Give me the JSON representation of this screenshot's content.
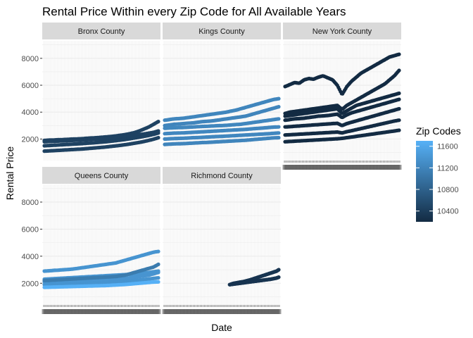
{
  "chart_data": {
    "type": "scatter",
    "title": "Rental Price Within every Zip Code for All Available Years",
    "xlabel": "Date",
    "ylabel": "Rental Price",
    "ylim": [
      400,
      9300
    ],
    "y_ticks": [
      2000,
      4000,
      6000,
      8000
    ],
    "grid": true,
    "facets": [
      "Bronx County",
      "Kings County",
      "New York County",
      "Queens County",
      "Richmond County"
    ],
    "legend": {
      "title": "Zip Codes",
      "placement": "right",
      "ticks": [
        10400,
        10800,
        11200,
        11600
      ],
      "range": [
        10200,
        11700
      ],
      "colors": {
        "low": "#132B43",
        "high": "#56B1F7"
      }
    },
    "panels": [
      {
        "facet": "Bronx County",
        "series": [
          {
            "zip": 10460,
            "values": [
              1900,
              1920,
              1930,
              1950,
              1960,
              1980,
              2000,
              2010,
              2030,
              2060,
              2080,
              2100,
              2130,
              2160,
              2190,
              2230,
              2280,
              2330,
              2400,
              2480,
              2600,
              2750,
              2900,
              3100,
              3300
            ]
          },
          {
            "zip": 10462,
            "values": [
              1800,
              1820,
              1830,
              1850,
              1860,
              1880,
              1900,
              1910,
              1930,
              1950,
              1980,
              2000,
              2020,
              2050,
              2080,
              2110,
              2150,
              2190,
              2230,
              2280,
              2330,
              2380,
              2440,
              2500,
              2600
            ]
          },
          {
            "zip": 10455,
            "values": [
              1500,
              1520,
              1540,
              1560,
              1580,
              1600,
              1620,
              1640,
              1660,
              1690,
              1710,
              1740,
              1770,
              1800,
              1840,
              1880,
              1920,
              1970,
              2020,
              2080,
              2140,
              2200,
              2270,
              2350,
              2450
            ]
          },
          {
            "zip": 10458,
            "values": [
              1100,
              1120,
              1140,
              1160,
              1180,
              1200,
              1220,
              1240,
              1260,
              1290,
              1320,
              1350,
              1380,
              1410,
              1450,
              1490,
              1530,
              1580,
              1630,
              1690,
              1750,
              1820,
              1900,
              1990,
              2100
            ]
          }
        ]
      },
      {
        "facet": "Kings County",
        "series": [
          {
            "zip": 11215,
            "values": [
              3400,
              3450,
              3500,
              3520,
              3550,
              3600,
              3650,
              3700,
              3750,
              3800,
              3850,
              3900,
              3950,
              4000,
              4080,
              4150,
              4250,
              4350,
              4450,
              4550,
              4650,
              4750,
              4850,
              4950,
              5000
            ]
          },
          {
            "zip": 11211,
            "values": [
              3000,
              3050,
              3100,
              3120,
              3150,
              3180,
              3200,
              3250,
              3300,
              3320,
              3350,
              3400,
              3450,
              3500,
              3550,
              3600,
              3650,
              3700,
              3800,
              3900,
              4000,
              4100,
              4200,
              4300,
              4400
            ]
          },
          {
            "zip": 11226,
            "values": [
              2800,
              2820,
              2840,
              2850,
              2860,
              2880,
              2900,
              2920,
              2940,
              2950,
              2970,
              2990,
              3000,
              3020,
              3050,
              3080,
              3100,
              3150,
              3200,
              3250,
              3300,
              3350,
              3400,
              3450,
              3500
            ]
          },
          {
            "zip": 11235,
            "values": [
              2400,
              2420,
              2440,
              2450,
              2460,
              2480,
              2500,
              2520,
              2540,
              2560,
              2580,
              2600,
              2620,
              2640,
              2660,
              2680,
              2700,
              2720,
              2750,
              2780,
              2800,
              2830,
              2860,
              2890,
              2900
            ]
          },
          {
            "zip": 11230,
            "values": [
              2000,
              2020,
              2040,
              2050,
              2060,
              2080,
              2100,
              2110,
              2130,
              2150,
              2170,
              2190,
              2200,
              2220,
              2240,
              2260,
              2280,
              2300,
              2320,
              2340,
              2360,
              2380,
              2400,
              2430,
              2450
            ]
          },
          {
            "zip": 11209,
            "values": [
              1600,
              1620,
              1640,
              1650,
              1660,
              1680,
              1700,
              1720,
              1740,
              1750,
              1770,
              1790,
              1810,
              1830,
              1850,
              1870,
              1890,
              1910,
              1940,
              1970,
              2000,
              2030,
              2060,
              2090,
              2100
            ]
          }
        ]
      },
      {
        "facet": "New York County",
        "series": [
          {
            "zip": 10013,
            "values": [
              5900,
              6050,
              6200,
              6150,
              6400,
              6500,
              6450,
              6600,
              6700,
              6550,
              6400,
              6000,
              5300,
              5900,
              6300,
              6600,
              6900,
              7100,
              7300,
              7500,
              7700,
              7900,
              8100,
              8200,
              8300
            ]
          },
          {
            "zip": 10007,
            "values": [
              3900,
              4000,
              4050,
              4100,
              4150,
              4200,
              4250,
              4300,
              4350,
              4400,
              4450,
              4500,
              4200,
              4500,
              4700,
              4900,
              5100,
              5300,
              5500,
              5700,
              5900,
              6100,
              6400,
              6700,
              7100
            ]
          },
          {
            "zip": 10011,
            "values": [
              3700,
              3750,
              3800,
              3850,
              3900,
              3950,
              4000,
              4050,
              4100,
              4150,
              4200,
              4250,
              3900,
              4100,
              4300,
              4500,
              4600,
              4700,
              4800,
              4900,
              5000,
              5100,
              5200,
              5300,
              5400
            ]
          },
          {
            "zip": 10016,
            "values": [
              3400,
              3450,
              3500,
              3520,
              3550,
              3600,
              3650,
              3700,
              3720,
              3750,
              3800,
              3850,
              3600,
              3800,
              3950,
              4050,
              4150,
              4250,
              4350,
              4450,
              4550,
              4650,
              4750,
              4850,
              4950
            ]
          },
          {
            "zip": 10025,
            "values": [
              2900,
              2920,
              2950,
              2970,
              3000,
              3020,
              3050,
              3070,
              3100,
              3120,
              3150,
              3170,
              3000,
              3150,
              3250,
              3350,
              3450,
              3550,
              3650,
              3750,
              3850,
              3950,
              4050,
              4150,
              4250
            ]
          },
          {
            "zip": 10031,
            "values": [
              2300,
              2320,
              2340,
              2360,
              2380,
              2400,
              2420,
              2440,
              2460,
              2480,
              2500,
              2520,
              2450,
              2550,
              2620,
              2700,
              2780,
              2860,
              2940,
              3020,
              3100,
              3180,
              3260,
              3340,
              3400
            ]
          },
          {
            "zip": 10034,
            "values": [
              1800,
              1820,
              1840,
              1860,
              1880,
              1900,
              1920,
              1940,
              1960,
              1980,
              2000,
              2020,
              2050,
              2100,
              2150,
              2200,
              2250,
              2300,
              2350,
              2400,
              2450,
              2500,
              2550,
              2600,
              2650
            ]
          }
        ]
      },
      {
        "facet": "Queens County",
        "series": [
          {
            "zip": 11375,
            "values": [
              2900,
              2920,
              2950,
              2970,
              3000,
              3020,
              3050,
              3100,
              3150,
              3200,
              3250,
              3300,
              3350,
              3400,
              3450,
              3500,
              3600,
              3700,
              3800,
              3900,
              4000,
              4100,
              4200,
              4300,
              4350
            ]
          },
          {
            "zip": 11385,
            "values": [
              2300,
              2320,
              2340,
              2360,
              2380,
              2400,
              2420,
              2440,
              2460,
              2480,
              2500,
              2520,
              2540,
              2560,
              2580,
              2600,
              2620,
              2640,
              2660,
              2680,
              2700,
              2750,
              2800,
              2850,
              2900
            ]
          },
          {
            "zip": 11377,
            "values": [
              2100,
              2110,
              2120,
              2130,
              2140,
              2150,
              2160,
              2170,
              2180,
              2190,
              2200,
              2210,
              2220,
              2230,
              2240,
              2260,
              2300,
              2350,
              2400,
              2450,
              2500,
              2550,
              2600,
              2700,
              2800
            ]
          },
          {
            "zip": 11372,
            "values": [
              1900,
              1910,
              1920,
              1930,
              1940,
              1950,
              1960,
              1970,
              1980,
              1990,
              2000,
              2010,
              2020,
              2030,
              2050,
              2070,
              2100,
              2130,
              2160,
              2200,
              2240,
              2280,
              2320,
              2360,
              2400
            ]
          },
          {
            "zip": 11691,
            "values": [
              1700,
              1710,
              1720,
              1730,
              1740,
              1750,
              1760,
              1770,
              1780,
              1790,
              1800,
              1810,
              1820,
              1830,
              1850,
              1870,
              1890,
              1910,
              1940,
              1970,
              2000,
              2030,
              2060,
              2090,
              2100
            ]
          },
          {
            "zip": 11104,
            "values": [
              2200,
              2220,
              2240,
              2260,
              2280,
              2300,
              2320,
              2340,
              2360,
              2380,
              2400,
              2420,
              2440,
              2460,
              2480,
              2500,
              2550,
              2600,
              2700,
              2800,
              2900,
              3000,
              3100,
              3200,
              3400
            ]
          }
        ]
      },
      {
        "facet": "Richmond County",
        "series": [
          {
            "zip": 10314,
            "start": 0.57,
            "values": [
              1900,
              1950,
              2000,
              2020,
              2050,
              2080,
              2100,
              2130,
              2170,
              2210,
              2250,
              2300,
              2350,
              2400,
              2450,
              2500,
              2550,
              2600,
              2650,
              2700,
              2750,
              2800,
              2850,
              2900,
              3000
            ]
          },
          {
            "zip": 10306,
            "start": 0.57,
            "values": [
              1900,
              1920,
              1940,
              1960,
              1980,
              2000,
              2020,
              2040,
              2060,
              2080,
              2100,
              2120,
              2140,
              2160,
              2180,
              2200,
              2220,
              2240,
              2260,
              2280,
              2300,
              2330,
              2360,
              2390,
              2450
            ]
          }
        ]
      }
    ]
  }
}
